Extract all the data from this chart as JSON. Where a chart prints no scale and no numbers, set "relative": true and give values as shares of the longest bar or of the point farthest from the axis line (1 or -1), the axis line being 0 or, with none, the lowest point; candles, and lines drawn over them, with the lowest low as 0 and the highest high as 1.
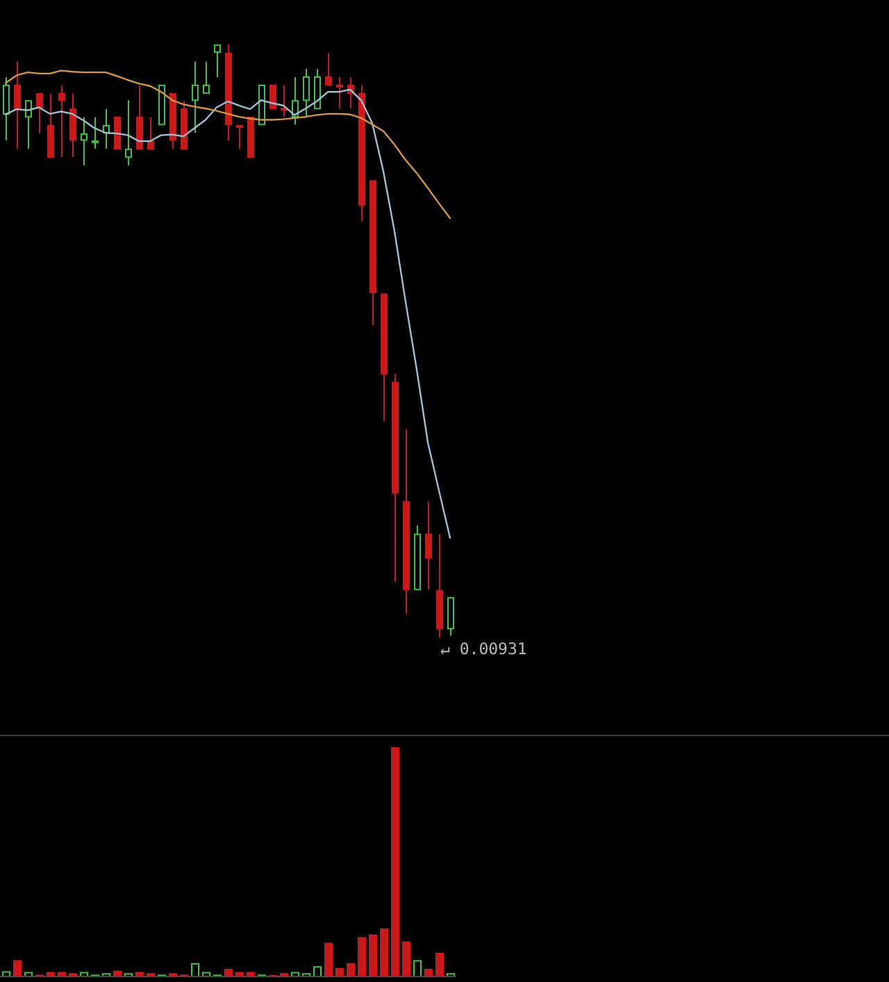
{
  "chart_data": [
    {
      "type": "candlestick",
      "relative": true,
      "tick_labels": false,
      "marker": "none",
      "categories": [
        null,
        null,
        null,
        null,
        null,
        null,
        null,
        null,
        null,
        null,
        null,
        null,
        null,
        null,
        null,
        null,
        null,
        null,
        null,
        null,
        null,
        null,
        null,
        null,
        null,
        null,
        null,
        null,
        null,
        null,
        null,
        null,
        null,
        null,
        null,
        null,
        null,
        null,
        null,
        null,
        null
      ],
      "ohlc": [
        [
          0.883,
          0.945,
          0.838,
          0.931
        ],
        [
          0.931,
          0.971,
          0.824,
          0.891
        ],
        [
          0.878,
          0.905,
          0.824,
          0.905
        ],
        [
          0.917,
          0.917,
          0.85,
          0.893
        ],
        [
          0.863,
          0.917,
          0.81,
          0.81
        ],
        [
          0.917,
          0.931,
          0.81,
          0.906
        ],
        [
          0.891,
          0.917,
          0.81,
          0.839
        ],
        [
          0.839,
          0.877,
          0.796,
          0.849
        ],
        [
          0.835,
          0.877,
          0.824,
          0.837
        ],
        [
          0.851,
          0.891,
          0.824,
          0.863
        ],
        [
          0.877,
          0.877,
          0.824,
          0.824
        ],
        [
          0.81,
          0.906,
          0.796,
          0.823
        ],
        [
          0.877,
          0.931,
          0.824,
          0.824
        ],
        [
          0.837,
          0.877,
          0.824,
          0.824
        ],
        [
          0.865,
          0.931,
          0.865,
          0.931
        ],
        [
          0.917,
          0.917,
          0.824,
          0.839
        ],
        [
          0.891,
          0.905,
          0.824,
          0.824
        ],
        [
          0.906,
          0.971,
          0.851,
          0.931
        ],
        [
          0.918,
          0.971,
          0.918,
          0.931
        ],
        [
          0.987,
          0.999,
          0.945,
          0.999
        ],
        [
          0.985,
          1,
          0.838,
          0.865
        ],
        [
          0.863,
          0.863,
          0.824,
          0.861
        ],
        [
          0.877,
          0.877,
          0.81,
          0.81
        ],
        [
          0.865,
          0.931,
          0.865,
          0.931
        ],
        [
          0.931,
          0.931,
          0.892,
          0.892
        ],
        [
          0.892,
          0.931,
          0.878,
          0.891
        ],
        [
          0.878,
          0.945,
          0.865,
          0.905
        ],
        [
          0.906,
          0.959,
          0.878,
          0.945
        ],
        [
          0.892,
          0.959,
          0.892,
          0.945
        ],
        [
          0.945,
          0.985,
          0.932,
          0.932
        ],
        [
          0.931,
          0.945,
          0.892,
          0.93
        ],
        [
          0.931,
          0.945,
          0.892,
          0.918
        ],
        [
          0.917,
          0.931,
          0.702,
          0.729
        ],
        [
          0.77,
          0.77,
          0.527,
          0.582
        ],
        [
          0.579,
          0.579,
          0.365,
          0.445
        ],
        [
          0.43,
          0.444,
          0.094,
          0.244
        ],
        [
          0.229,
          0.351,
          0.04,
          0.081
        ],
        [
          0.081,
          0.189,
          0.081,
          0.174
        ],
        [
          0.174,
          0.229,
          0.081,
          0.134
        ],
        [
          0.079,
          0.174,
          0,
          0.015
        ],
        [
          0.015,
          0.067,
          0.003,
          0.067
        ]
      ],
      "colors": [
        "#3ec43e",
        "#cc1818",
        "#3ec43e",
        "#cc1818",
        "#cc1818",
        "#cc1818",
        "#cc1818",
        "#3ec43e",
        "#3ec43e",
        "#3ec43e",
        "#cc1818",
        "#3ec43e",
        "#cc1818",
        "#cc1818",
        "#3ec43e",
        "#cc1818",
        "#cc1818",
        "#3ec43e",
        "#3ec43e",
        "#3ec43e",
        "#cc1818",
        "#cc1818",
        "#cc1818",
        "#3ec43e",
        "#cc1818",
        "#cc1818",
        "#3ec43e",
        "#3ec43e",
        "#3ec43e",
        "#cc1818",
        "#cc1818",
        "#cc1818",
        "#cc1818",
        "#cc1818",
        "#cc1818",
        "#cc1818",
        "#cc1818",
        "#3ec43e",
        "#cc1818",
        "#cc1818",
        "#3ec43e"
      ],
      "series": [
        {
          "type": "line",
          "color": "#9dbfd4",
          "values": [
            0.882,
            0.891,
            0.889,
            0.894,
            0.883,
            0.887,
            0.883,
            0.872,
            0.859,
            0.851,
            0.85,
            0.847,
            0.837,
            0.837,
            0.847,
            0.848,
            0.845,
            0.859,
            0.873,
            0.894,
            0.904,
            0.897,
            0.891,
            0.906,
            0.901,
            0.897,
            0.881,
            0.892,
            0.904,
            0.92,
            0.92,
            0.924,
            0.906,
            0.867,
            0.786,
            0.685,
            0.566,
            0.452,
            0.329,
            0.248,
            0.168
          ]
        },
        {
          "type": "line",
          "color": "#d4973f",
          "values": [
            0.935,
            0.948,
            0.953,
            0.951,
            0.951,
            0.956,
            0.954,
            0.953,
            0.953,
            0.953,
            0.947,
            0.94,
            0.934,
            0.93,
            0.92,
            0.906,
            0.899,
            0.895,
            0.892,
            0.888,
            0.883,
            0.878,
            0.875,
            0.873,
            0.873,
            0.874,
            0.876,
            0.878,
            0.881,
            0.883,
            0.883,
            0.882,
            0.876,
            0.865,
            0.854,
            0.831,
            0.805,
            0.783,
            0.758,
            0.732,
            0.707
          ]
        }
      ],
      "annotations": [
        "↵ 0.00931"
      ]
    },
    {
      "type": "bar",
      "relative": true,
      "tick_labels": false,
      "categories": [
        null,
        null,
        null,
        null,
        null,
        null,
        null,
        null,
        null,
        null,
        null,
        null,
        null,
        null,
        null,
        null,
        null,
        null,
        null,
        null,
        null,
        null,
        null,
        null,
        null,
        null,
        null,
        null,
        null,
        null,
        null,
        null,
        null,
        null,
        null,
        null,
        null,
        null,
        null,
        null,
        null
      ],
      "values": [
        0.02,
        0.068,
        0.017,
        0.005,
        0.017,
        0.017,
        0.011,
        0.017,
        0.005,
        0.011,
        0.023,
        0.011,
        0.017,
        0.011,
        0.005,
        0.011,
        0.005,
        0.055,
        0.017,
        0.005,
        0.03,
        0.017,
        0.017,
        0.005,
        0.003,
        0.011,
        0.017,
        0.011,
        0.042,
        0.144,
        0.034,
        0.055,
        0.169,
        0.18,
        0.207,
        1,
        0.15,
        0.068,
        0.03,
        0.1,
        0.011
      ],
      "colors": [
        "#3ec43e",
        "#cc1818",
        "#3ec43e",
        "#cc1818",
        "#cc1818",
        "#cc1818",
        "#cc1818",
        "#3ec43e",
        "#3ec43e",
        "#3ec43e",
        "#cc1818",
        "#3ec43e",
        "#cc1818",
        "#cc1818",
        "#3ec43e",
        "#cc1818",
        "#cc1818",
        "#3ec43e",
        "#3ec43e",
        "#3ec43e",
        "#cc1818",
        "#cc1818",
        "#cc1818",
        "#3ec43e",
        "#cc1818",
        "#cc1818",
        "#3ec43e",
        "#3ec43e",
        "#3ec43e",
        "#cc1818",
        "#cc1818",
        "#cc1818",
        "#cc1818",
        "#cc1818",
        "#cc1818",
        "#cc1818",
        "#cc1818",
        "#3ec43e",
        "#cc1818",
        "#cc1818",
        "#3ec43e"
      ]
    }
  ]
}
